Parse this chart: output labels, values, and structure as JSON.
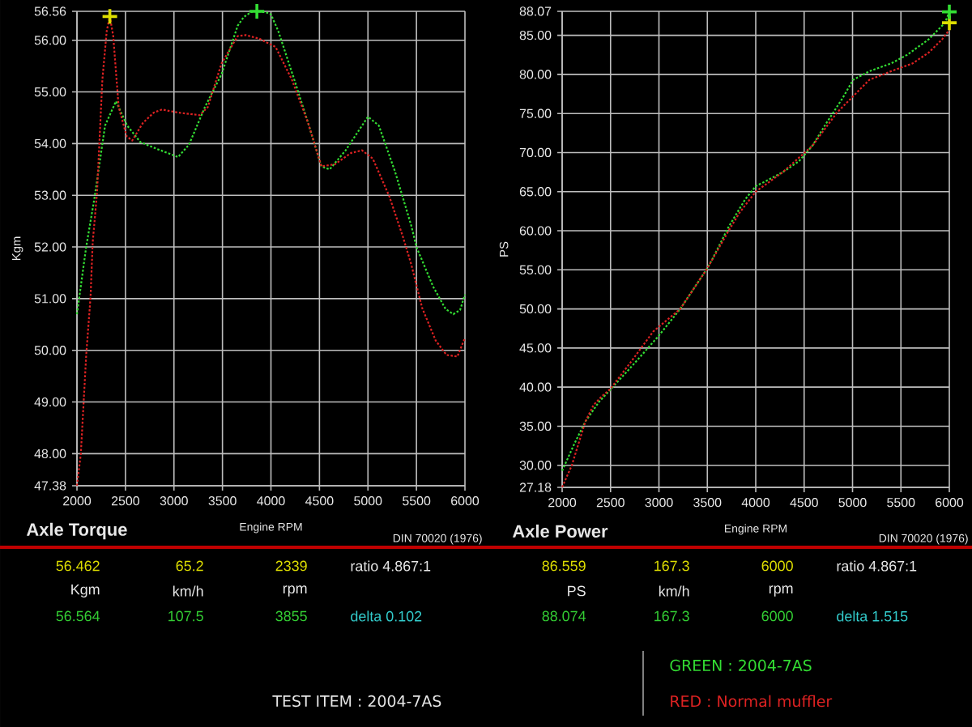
{
  "chart_data": [
    {
      "type": "line",
      "title": "Axle Torque",
      "xlabel": "Engine RPM",
      "ylabel": "Kgm",
      "xlim": [
        2000,
        6000
      ],
      "ylim": [
        47.38,
        56.56
      ],
      "xticks": [
        2000,
        2500,
        3000,
        3500,
        4000,
        4500,
        5000,
        5500,
        6000
      ],
      "yticks": [
        47.38,
        {
          "value": 48,
          "label": "48.00"
        },
        {
          "value": 49,
          "label": "49.00"
        },
        {
          "value": 50,
          "label": "50.00"
        },
        {
          "value": 51,
          "label": "51.00"
        },
        {
          "value": 52,
          "label": "52.00"
        },
        {
          "value": 53,
          "label": "53.00"
        },
        {
          "value": 54,
          "label": "54.00"
        },
        {
          "value": 55,
          "label": "55.00"
        },
        {
          "value": 56,
          "label": "56.00"
        },
        56.56
      ],
      "grid": true,
      "line_style": "dotted",
      "marker": "none",
      "series": [
        {
          "color": "#33dd33",
          "x": [
            2000,
            2095,
            2179,
            2290,
            2402,
            2517,
            2653,
            2820,
            3043,
            3155,
            3320,
            3490,
            3657,
            3720,
            3800,
            3855,
            3950,
            4000,
            4075,
            4240,
            4383,
            4520,
            4605,
            4770,
            5000,
            5112,
            5279,
            5447,
            5500,
            5670,
            5800,
            5880,
            5950,
            6000
          ],
          "values": [
            50.7,
            52.0,
            52.93,
            54.35,
            54.82,
            54.35,
            54.03,
            53.9,
            53.74,
            53.98,
            54.71,
            55.34,
            56.28,
            56.45,
            56.55,
            56.56,
            56.54,
            56.5,
            56.18,
            55.24,
            54.4,
            53.56,
            53.5,
            53.87,
            54.52,
            54.35,
            53.46,
            52.41,
            52.0,
            51.24,
            50.8,
            50.7,
            50.78,
            51.08
          ]
        },
        {
          "color": "#dd2222",
          "x": [
            2000,
            2040,
            2095,
            2140,
            2162,
            2207,
            2262,
            2307,
            2339,
            2374,
            2430,
            2513,
            2570,
            2680,
            2792,
            2876,
            3043,
            3267,
            3350,
            3490,
            3657,
            3740,
            3880,
            4048,
            4215,
            4383,
            4520,
            4660,
            4827,
            4939,
            5050,
            5220,
            5360,
            5447,
            5559,
            5698,
            5810,
            5922,
            6000
          ],
          "values": [
            47.38,
            48.0,
            49.9,
            51.03,
            52.08,
            53.05,
            55.24,
            56.18,
            56.46,
            56.08,
            54.71,
            54.14,
            54.06,
            54.4,
            54.6,
            54.66,
            54.6,
            54.55,
            54.71,
            55.55,
            56.08,
            56.1,
            56.03,
            55.87,
            55.24,
            54.4,
            53.56,
            53.6,
            53.82,
            53.87,
            53.71,
            52.98,
            52.2,
            51.66,
            50.82,
            50.19,
            49.91,
            49.88,
            50.24
          ]
        },
        {
          "type": "scatter",
          "marker": "cross",
          "x": [
            2339,
            3855
          ],
          "values": [
            56.46,
            56.56
          ],
          "colors": [
            "#dddd00",
            "#33dd33"
          ]
        }
      ],
      "annotations": [
        "DIN 70020 (1976)",
        "56.462",
        "65.2",
        "2339",
        "ratio  4.867:1",
        "Kgm",
        "km/h",
        "rpm",
        "56.564",
        "107.5",
        "3855",
        "delta  0.102",
        "TEST ITEM : 2004-7AS"
      ]
    },
    {
      "type": "line",
      "title": "Axle Power",
      "xlabel": "Engine RPM",
      "ylabel": "PS",
      "xlim": [
        2000,
        6000
      ],
      "ylim": [
        27.18,
        88.07
      ],
      "xticks": [
        2000,
        2500,
        3000,
        3500,
        4000,
        4500,
        5000,
        5500,
        6000
      ],
      "yticks": [
        27.18,
        {
          "value": 30,
          "label": "30.00"
        },
        {
          "value": 35,
          "label": "35.00"
        },
        {
          "value": 40,
          "label": "40.00"
        },
        {
          "value": 45,
          "label": "45.00"
        },
        {
          "value": 50,
          "label": "50.00"
        },
        {
          "value": 55,
          "label": "55.00"
        },
        {
          "value": 60,
          "label": "60.00"
        },
        {
          "value": 65,
          "label": "65.00"
        },
        {
          "value": 70,
          "label": "70.00"
        },
        {
          "value": 75,
          "label": "75.00"
        },
        {
          "value": 80,
          "label": "80.00"
        },
        {
          "value": 85,
          "label": "85.00"
        },
        88.07
      ],
      "grid": true,
      "line_style": "dotted",
      "marker": "none",
      "legend": "bottom",
      "series": [
        {
          "name": "GREEN : 2004-7AS",
          "color": "#33dd33",
          "x": [
            2000,
            2128,
            2240,
            2380,
            2500,
            2715,
            3000,
            3220,
            3500,
            3553,
            3720,
            3890,
            4000,
            4112,
            4280,
            4447,
            4587,
            4726,
            4894,
            5006,
            5173,
            5397,
            5564,
            5788,
            5955,
            6000
          ],
          "values": [
            29.3,
            32.8,
            35.6,
            38.1,
            39.7,
            42.6,
            46.6,
            50.0,
            55.2,
            56.4,
            60.5,
            64.0,
            65.7,
            66.4,
            67.5,
            68.9,
            70.9,
            73.7,
            76.9,
            79.3,
            80.4,
            81.4,
            82.5,
            84.5,
            86.6,
            88.0
          ]
        },
        {
          "name": "RED : Normal muffler",
          "color": "#dd2222",
          "x": [
            2000,
            2100,
            2240,
            2324,
            2408,
            2500,
            2715,
            2940,
            3220,
            3500,
            3720,
            3832,
            4000,
            4280,
            4587,
            4838,
            5006,
            5173,
            5397,
            5620,
            5788,
            5927,
            6000
          ],
          "values": [
            27.2,
            30.0,
            35.6,
            37.7,
            38.8,
            39.8,
            43.3,
            47.1,
            50.0,
            55.2,
            60.0,
            62.3,
            65.0,
            67.5,
            70.9,
            75.1,
            77.2,
            79.3,
            80.4,
            81.4,
            82.8,
            84.5,
            85.7
          ]
        },
        {
          "type": "scatter",
          "marker": "cross",
          "x": [
            6000,
            6000
          ],
          "values": [
            86.6,
            88.0
          ],
          "colors": [
            "#dddd00",
            "#33dd33"
          ]
        }
      ],
      "annotations": [
        "DIN 70020 (1976)",
        "86.559",
        "167.3",
        "6000",
        "ratio  4.867:1",
        "PS",
        "km/h",
        "rpm",
        "88.074",
        "167.3",
        "6000",
        "delta  1.515"
      ]
    }
  ]
}
